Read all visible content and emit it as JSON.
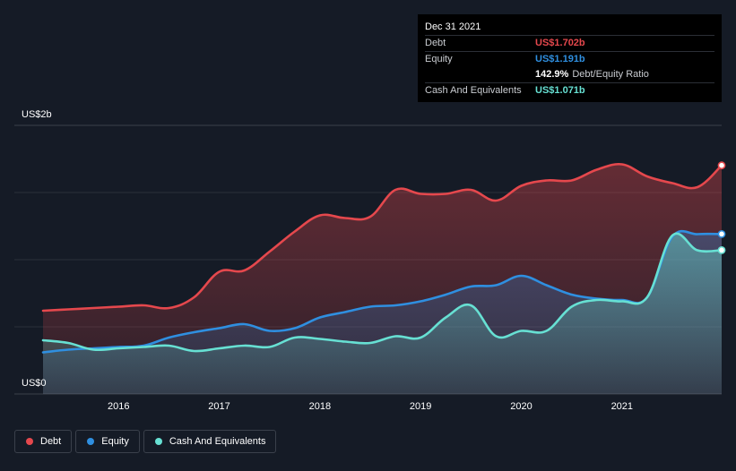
{
  "tooltip": {
    "date": "Dec 31 2021",
    "debt_label": "Debt",
    "debt_value": "US$1.702b",
    "equity_label": "Equity",
    "equity_value": "US$1.191b",
    "ratio_value": "142.9%",
    "ratio_label": "Debt/Equity Ratio",
    "cash_label": "Cash And Equivalents",
    "cash_value": "US$1.071b"
  },
  "legend": [
    {
      "label": "Debt",
      "color": "#e5484d"
    },
    {
      "label": "Equity",
      "color": "#2f8fe0"
    },
    {
      "label": "Cash And Equivalents",
      "color": "#67e0d3"
    }
  ],
  "chart_data": {
    "type": "area",
    "y_axis_labels": [
      "US$2b",
      "US$0"
    ],
    "ylim": [
      0,
      2.0
    ],
    "xlim": [
      2015.25,
      2021.99
    ],
    "x_ticks": [
      2016,
      2017,
      2018,
      2019,
      2020,
      2021
    ],
    "x_tick_labels": [
      "2016",
      "2017",
      "2018",
      "2019",
      "2020",
      "2021"
    ],
    "grid": true,
    "colors": {
      "Debt": "#e5484d",
      "Equity": "#2f8fe0",
      "Cash And Equivalents": "#67e0d3"
    },
    "series": [
      {
        "name": "Debt",
        "x": [
          2015.25,
          2015.5,
          2015.75,
          2016.0,
          2016.25,
          2016.5,
          2016.75,
          2017.0,
          2017.25,
          2017.5,
          2017.75,
          2018.0,
          2018.25,
          2018.5,
          2018.75,
          2019.0,
          2019.25,
          2019.5,
          2019.75,
          2020.0,
          2020.25,
          2020.5,
          2020.75,
          2021.0,
          2021.25,
          2021.5,
          2021.75,
          2021.99
        ],
        "values": [
          0.62,
          0.63,
          0.64,
          0.65,
          0.66,
          0.64,
          0.72,
          0.91,
          0.92,
          1.06,
          1.21,
          1.33,
          1.31,
          1.32,
          1.52,
          1.49,
          1.49,
          1.52,
          1.44,
          1.55,
          1.59,
          1.59,
          1.67,
          1.71,
          1.62,
          1.57,
          1.54,
          1.702
        ]
      },
      {
        "name": "Equity",
        "x": [
          2015.25,
          2015.5,
          2015.75,
          2016.0,
          2016.25,
          2016.5,
          2016.75,
          2017.0,
          2017.25,
          2017.5,
          2017.75,
          2018.0,
          2018.25,
          2018.5,
          2018.75,
          2019.0,
          2019.25,
          2019.5,
          2019.75,
          2020.0,
          2020.25,
          2020.5,
          2020.75,
          2021.0,
          2021.25,
          2021.5,
          2021.75,
          2021.99
        ],
        "values": [
          0.31,
          0.33,
          0.34,
          0.35,
          0.36,
          0.42,
          0.46,
          0.49,
          0.52,
          0.47,
          0.49,
          0.57,
          0.61,
          0.65,
          0.66,
          0.69,
          0.74,
          0.8,
          0.81,
          0.88,
          0.81,
          0.74,
          0.71,
          0.7,
          0.72,
          1.17,
          1.19,
          1.191
        ]
      },
      {
        "name": "Cash And Equivalents",
        "x": [
          2015.25,
          2015.5,
          2015.75,
          2016.0,
          2016.25,
          2016.5,
          2016.75,
          2017.0,
          2017.25,
          2017.5,
          2017.75,
          2018.0,
          2018.25,
          2018.5,
          2018.75,
          2019.0,
          2019.25,
          2019.5,
          2019.75,
          2020.0,
          2020.25,
          2020.5,
          2020.75,
          2021.0,
          2021.25,
          2021.5,
          2021.75,
          2021.99
        ],
        "values": [
          0.4,
          0.38,
          0.33,
          0.34,
          0.35,
          0.36,
          0.32,
          0.34,
          0.36,
          0.35,
          0.42,
          0.41,
          0.39,
          0.38,
          0.43,
          0.42,
          0.57,
          0.66,
          0.43,
          0.47,
          0.47,
          0.65,
          0.7,
          0.69,
          0.72,
          1.18,
          1.07,
          1.071
        ]
      }
    ]
  }
}
